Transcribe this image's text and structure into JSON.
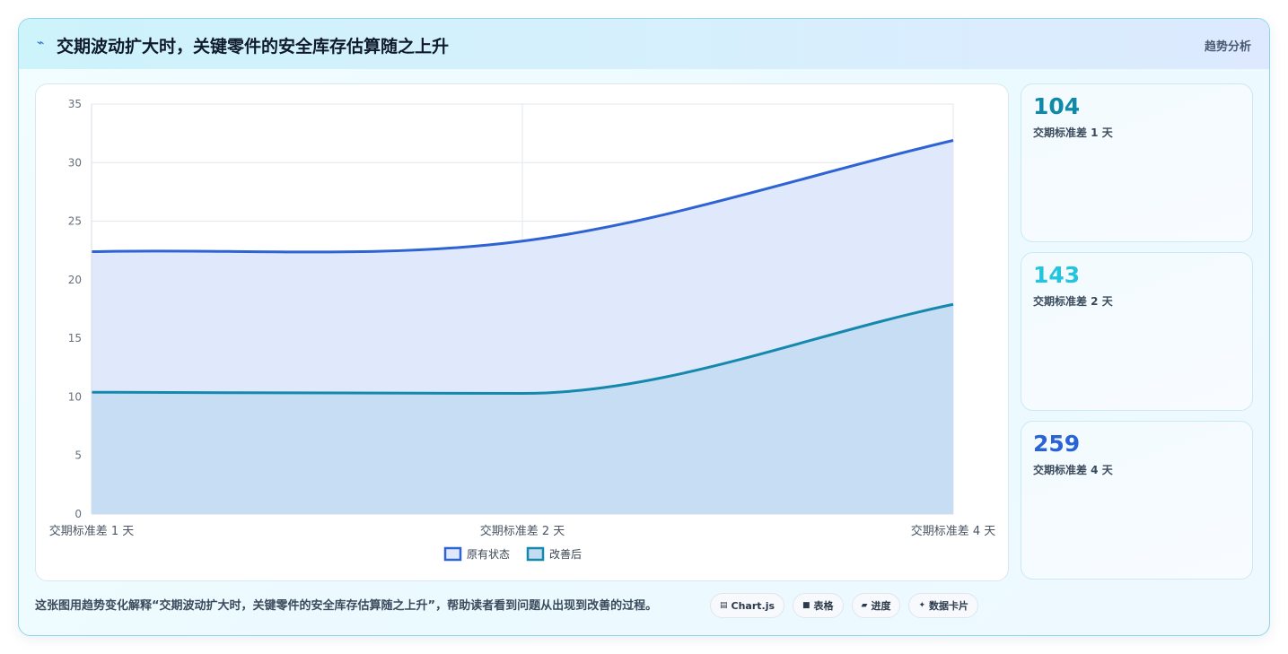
{
  "header": {
    "title": "交期波动扩大时，关键零件的安全库存估算随之上升",
    "tag": "趋势分析",
    "icon": "bolt-icon"
  },
  "stats": [
    {
      "value": "104",
      "label": "交期标准差 1 天",
      "color": "#0e8aa8"
    },
    {
      "value": "143",
      "label": "交期标准差 2 天",
      "color": "#23c4de"
    },
    {
      "value": "259",
      "label": "交期标准差 4 天",
      "color": "#2a62d8"
    }
  ],
  "footer": {
    "description": "这张图用趋势变化解释“交期波动扩大时，关键零件的安全库存估算随之上升”，帮助读者看到问题从出现到改善的过程。",
    "chips": [
      {
        "icon": "chart-icon",
        "glyph": "▤",
        "label": "Chart.js"
      },
      {
        "icon": "table-icon",
        "glyph": "■",
        "label": "表格"
      },
      {
        "icon": "progress-icon",
        "glyph": "▰",
        "label": "进度"
      },
      {
        "icon": "card-icon",
        "glyph": "✦",
        "label": "数据卡片"
      }
    ]
  },
  "chart_data": {
    "type": "area",
    "categories": [
      "交期标准差 1 天",
      "交期标准差 2 天",
      "交期标准差 4 天"
    ],
    "series": [
      {
        "name": "原有状态",
        "values": [
          22.4,
          23.3,
          31.9
        ],
        "color": "#2d63d3",
        "fill": "#e0e9fb"
      },
      {
        "name": "改善后",
        "values": [
          10.4,
          10.3,
          17.9
        ],
        "color": "#1589ad",
        "fill": "#c4dcf2"
      }
    ],
    "ylim": [
      0,
      35
    ],
    "yticks": [
      "0",
      "5",
      "10",
      "15",
      "20",
      "25",
      "30",
      "35"
    ],
    "grid": true,
    "legend": "bottom"
  }
}
